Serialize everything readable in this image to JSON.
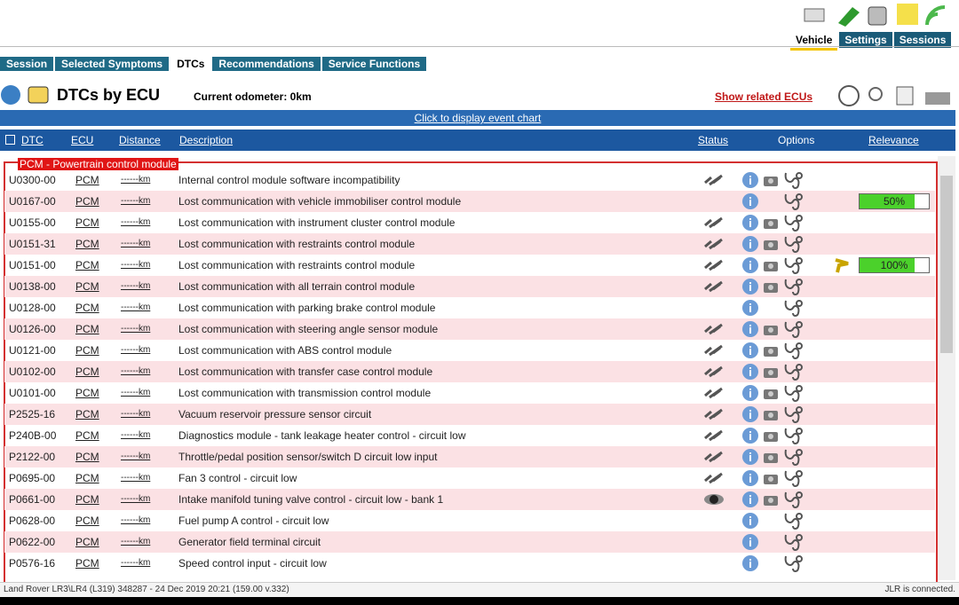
{
  "top_tabs": [
    "Vehicle",
    "Settings",
    "Sessions"
  ],
  "nav_tabs": [
    "Session",
    "Selected Symptoms",
    "DTCs",
    "Recommendations",
    "Service Functions"
  ],
  "header": {
    "title": "DTCs by ECU",
    "odometer": "Current odometer: 0km",
    "related_link": "Show related ECUs"
  },
  "event_chart_link": "Click to display event chart",
  "table": {
    "columns": [
      "DTC",
      "ECU",
      "Distance",
      "Description",
      "Status",
      "Options",
      "Relevance"
    ],
    "group": "PCM - Powertrain control module",
    "rows": [
      {
        "dtc": "U0300-00",
        "ecu": "PCM",
        "distance": "------km",
        "description": "Internal control module software incompatibility"
      },
      {
        "dtc": "U0167-00",
        "ecu": "PCM",
        "distance": "------km",
        "description": "Lost communication with vehicle immobiliser control module",
        "relevance": "50%"
      },
      {
        "dtc": "U0155-00",
        "ecu": "PCM",
        "distance": "------km",
        "description": "Lost communication with instrument cluster control module"
      },
      {
        "dtc": "U0151-31",
        "ecu": "PCM",
        "distance": "------km",
        "description": "Lost communication with restraints control module"
      },
      {
        "dtc": "U0151-00",
        "ecu": "PCM",
        "distance": "------km",
        "description": "Lost communication with restraints control module",
        "relevance": "100%"
      },
      {
        "dtc": "U0138-00",
        "ecu": "PCM",
        "distance": "------km",
        "description": "Lost communication with all terrain control module"
      },
      {
        "dtc": "U0128-00",
        "ecu": "PCM",
        "distance": "------km",
        "description": "Lost communication with parking brake control module"
      },
      {
        "dtc": "U0126-00",
        "ecu": "PCM",
        "distance": "------km",
        "description": "Lost communication with steering angle sensor module"
      },
      {
        "dtc": "U0121-00",
        "ecu": "PCM",
        "distance": "------km",
        "description": "Lost communication with ABS control module"
      },
      {
        "dtc": "U0102-00",
        "ecu": "PCM",
        "distance": "------km",
        "description": "Lost communication with transfer case control module"
      },
      {
        "dtc": "U0101-00",
        "ecu": "PCM",
        "distance": "------km",
        "description": "Lost communication with transmission control module"
      },
      {
        "dtc": "P2525-16",
        "ecu": "PCM",
        "distance": "------km",
        "description": "Vacuum reservoir pressure sensor circuit"
      },
      {
        "dtc": "P240B-00",
        "ecu": "PCM",
        "distance": "------km",
        "description": "Diagnostics module - tank leakage heater control - circuit low"
      },
      {
        "dtc": "P2122-00",
        "ecu": "PCM",
        "distance": "------km",
        "description": "Throttle/pedal position sensor/switch D circuit low input"
      },
      {
        "dtc": "P0695-00",
        "ecu": "PCM",
        "distance": "------km",
        "description": "Fan 3 control - circuit low"
      },
      {
        "dtc": "P0661-00",
        "ecu": "PCM",
        "distance": "------km",
        "description": "Intake manifold tuning valve control - circuit low - bank 1"
      },
      {
        "dtc": "P0628-00",
        "ecu": "PCM",
        "distance": "------km",
        "description": "Fuel pump A control - circuit low"
      },
      {
        "dtc": "P0622-00",
        "ecu": "PCM",
        "distance": "------km",
        "description": "Generator field terminal circuit"
      },
      {
        "dtc": "P0576-16",
        "ecu": "PCM",
        "distance": "------km",
        "description": "Speed control input - circuit low"
      }
    ]
  },
  "footer": {
    "vehicle": "Land Rover LR3\\LR4 (L319) 348287 - 24 Dec 2019 20:21 (159.00 v.332)",
    "status": "JLR is connected."
  }
}
